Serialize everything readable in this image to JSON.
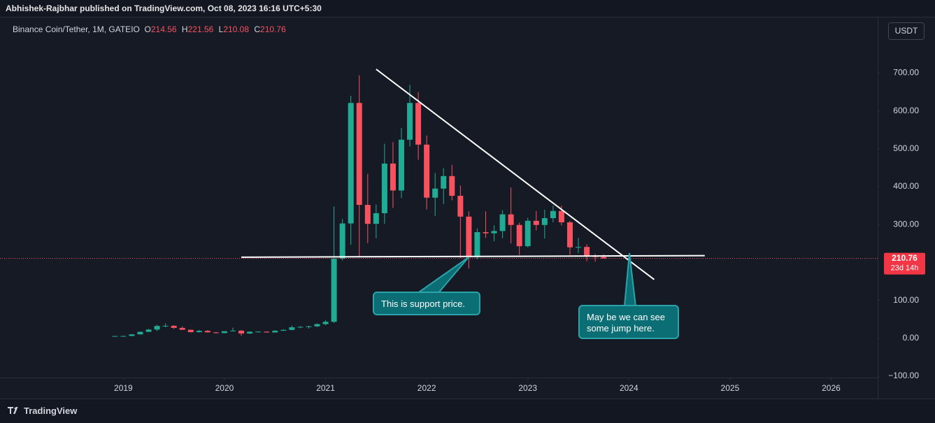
{
  "chart_data": {
    "type": "candlestick",
    "publisher": "Abhishek-Rajbhar published on TradingView.com, Oct 08, 2023 16:16 UTC+5:30",
    "symbol": "Binance Coin/Tether, 1M, GATEIO",
    "ohlc_labels": [
      "O",
      "H",
      "L",
      "C"
    ],
    "currency": "USDT",
    "countdown": "23d 14h",
    "brand": "TradingView",
    "x": [
      "2018-12",
      "2019-01",
      "2019-02",
      "2019-03",
      "2019-04",
      "2019-05",
      "2019-06",
      "2019-07",
      "2019-08",
      "2019-09",
      "2019-10",
      "2019-11",
      "2019-12",
      "2020-01",
      "2020-02",
      "2020-03",
      "2020-04",
      "2020-05",
      "2020-06",
      "2020-07",
      "2020-08",
      "2020-09",
      "2020-10",
      "2020-11",
      "2020-12",
      "2021-01",
      "2021-02",
      "2021-03",
      "2021-04",
      "2021-05",
      "2021-06",
      "2021-07",
      "2021-08",
      "2021-09",
      "2021-10",
      "2021-11",
      "2021-12",
      "2022-01",
      "2022-02",
      "2022-03",
      "2022-04",
      "2022-05",
      "2022-06",
      "2022-07",
      "2022-08",
      "2022-09",
      "2022-10",
      "2022-11",
      "2022-12",
      "2023-01",
      "2023-02",
      "2023-03",
      "2023-04",
      "2023-05",
      "2023-06",
      "2023-07",
      "2023-08",
      "2023-09",
      "2023-10"
    ],
    "open": [
      5.0,
      5.9,
      6.0,
      10.3,
      17.0,
      23.0,
      32.5,
      33.0,
      27.4,
      22.4,
      16.1,
      19.6,
      15.7,
      13.7,
      18.7,
      20.1,
      12.5,
      17.2,
      17.5,
      15.3,
      19.8,
      22.1,
      29.0,
      30.2,
      31.5,
      37.4,
      43.5,
      210,
      303,
      621,
      352,
      302,
      330,
      461,
      390,
      524,
      621,
      511,
      371,
      395,
      428,
      376,
      321,
      214,
      280,
      277,
      283,
      327,
      299,
      243,
      310,
      299,
      317,
      336,
      306,
      240,
      241,
      218,
      214.56
    ],
    "high": [
      6.3,
      6.9,
      11.0,
      17.7,
      25.0,
      35.9,
      39.6,
      34.8,
      31.5,
      22.8,
      21.9,
      21.5,
      16.3,
      19.0,
      27.9,
      22.0,
      18.2,
      18.6,
      18.4,
      21.5,
      24.2,
      33.7,
      32.0,
      33.0,
      38.7,
      48.0,
      348,
      315,
      640,
      694,
      434,
      353,
      513,
      518,
      555,
      669,
      650,
      535,
      436,
      449,
      458,
      403,
      335,
      290,
      335,
      298,
      338,
      398,
      305,
      318,
      336,
      339,
      350,
      350,
      310,
      265,
      248,
      223,
      221.56
    ],
    "low": [
      4.2,
      5.3,
      5.9,
      9.8,
      16.2,
      19.0,
      29.0,
      24.4,
      22.0,
      15.5,
      15.1,
      14.9,
      12.5,
      13.1,
      18.5,
      6.4,
      11.7,
      15.4,
      14.9,
      15.1,
      19.7,
      20.9,
      26.6,
      25.5,
      29.5,
      34.6,
      40.0,
      205,
      247,
      214,
      251,
      264,
      302,
      344,
      370,
      506,
      471,
      340,
      323,
      354,
      364,
      212,
      184,
      209,
      265,
      256,
      264,
      250,
      220,
      240,
      285,
      263,
      306,
      298,
      220,
      225,
      203,
      202,
      210.08
    ],
    "close": [
      5.9,
      6.0,
      10.3,
      17.0,
      23.0,
      32.5,
      33.0,
      27.4,
      22.4,
      16.1,
      19.6,
      15.7,
      13.7,
      18.7,
      20.1,
      12.5,
      17.2,
      17.5,
      15.3,
      19.8,
      22.1,
      29.0,
      30.2,
      31.5,
      37.4,
      43.5,
      210,
      303,
      621,
      352,
      302,
      330,
      461,
      390,
      524,
      621,
      511,
      371,
      395,
      428,
      376,
      321,
      214,
      280,
      277,
      283,
      327,
      299,
      243,
      310,
      299,
      317,
      336,
      306,
      240,
      241,
      218,
      214.56,
      210.76
    ],
    "up_color": "#22ab94",
    "down_color": "#f7525f",
    "xlim": [
      2017.78,
      2026.46
    ],
    "xticks": [
      2019,
      2020,
      2021,
      2022,
      2023,
      2024,
      2025,
      2026
    ],
    "ylim": [
      -159,
      841
    ],
    "yticks": [
      {
        "value": 700,
        "label": "700.00"
      },
      {
        "value": 600,
        "label": "600.00"
      },
      {
        "value": 500,
        "label": "500.00"
      },
      {
        "value": 400,
        "label": "400.00"
      },
      {
        "value": 300,
        "label": "300.00"
      },
      {
        "value": 100,
        "label": "100.00"
      },
      {
        "value": 0,
        "label": "0.00"
      },
      {
        "value": -100,
        "label": "−100.00"
      }
    ],
    "grid": false,
    "lines": [
      {
        "points": [
          {
            "x": "2021-07",
            "y": 710
          },
          {
            "x": "2024-04",
            "y": 155
          }
        ]
      },
      {
        "points": [
          {
            "x": "2020-03",
            "y": 214
          },
          {
            "x": "2024-10",
            "y": 218
          }
        ]
      }
    ],
    "annotations": [
      "This is support price.",
      "May be we can see some jump here."
    ]
  }
}
